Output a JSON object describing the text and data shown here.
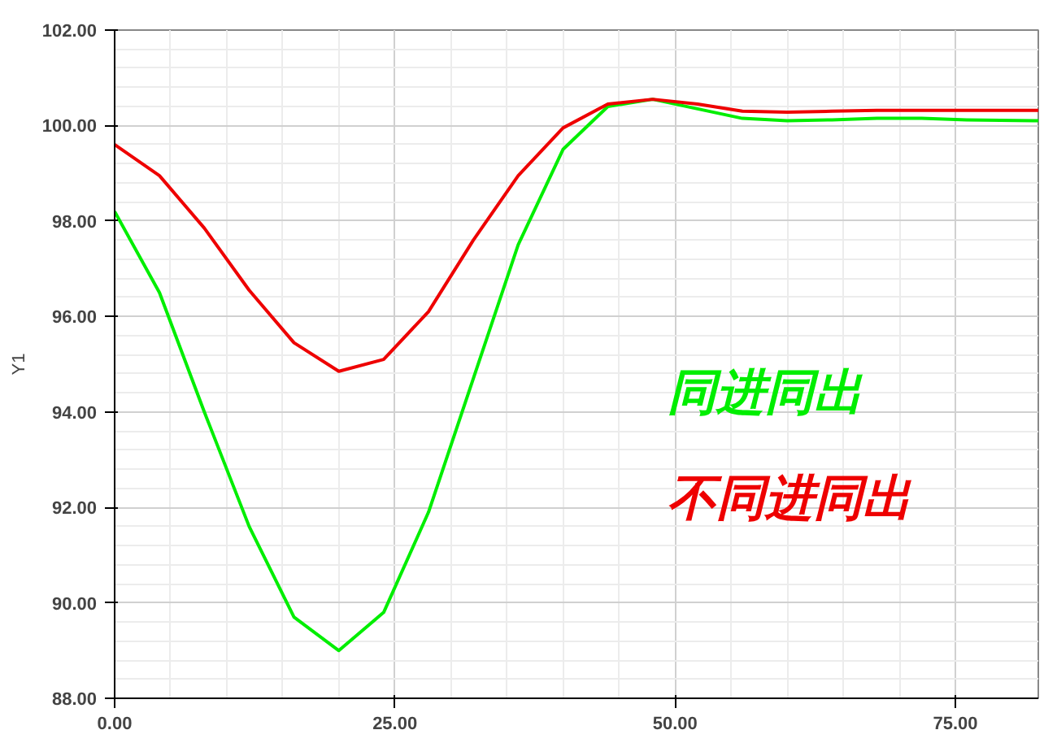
{
  "chart_data": {
    "type": "line",
    "ylabel": "Y1",
    "xlim": [
      0,
      82.4
    ],
    "ylim": [
      88,
      102
    ],
    "xticks": [
      {
        "value": 0,
        "label": "0.00"
      },
      {
        "value": 25,
        "label": "25.00"
      },
      {
        "value": 50,
        "label": "50.00"
      },
      {
        "value": 75,
        "label": "75.00"
      }
    ],
    "yticks": [
      {
        "value": 88,
        "label": "88.00"
      },
      {
        "value": 90,
        "label": "90.00"
      },
      {
        "value": 92,
        "label": "92.00"
      },
      {
        "value": 94,
        "label": "94.00"
      },
      {
        "value": 96,
        "label": "96.00"
      },
      {
        "value": 98,
        "label": "98.00"
      },
      {
        "value": 100,
        "label": "100.00"
      },
      {
        "value": 102,
        "label": "102.00"
      }
    ],
    "grid": true,
    "legend": "bottom",
    "marker": "none",
    "line_style": "solid",
    "x": [
      0,
      4,
      8,
      12,
      16,
      20,
      24,
      28,
      32,
      36,
      40,
      44,
      48,
      52,
      56,
      60,
      64,
      68,
      72,
      76,
      82.4
    ],
    "series": [
      {
        "name": "同进同出",
        "color": "#00ee00",
        "values": [
          98.2,
          96.5,
          94.0,
          91.6,
          89.7,
          89.0,
          89.8,
          91.9,
          94.7,
          97.5,
          99.5,
          100.4,
          100.55,
          100.35,
          100.15,
          100.1,
          100.12,
          100.15,
          100.15,
          100.12,
          100.1
        ]
      },
      {
        "name": "不同进同出",
        "color": "#ee0000",
        "values": [
          99.6,
          98.95,
          97.85,
          96.55,
          95.45,
          94.85,
          95.1,
          96.1,
          97.6,
          98.95,
          99.95,
          100.45,
          100.55,
          100.45,
          100.3,
          100.28,
          100.3,
          100.32,
          100.32,
          100.32,
          100.32
        ]
      }
    ]
  }
}
